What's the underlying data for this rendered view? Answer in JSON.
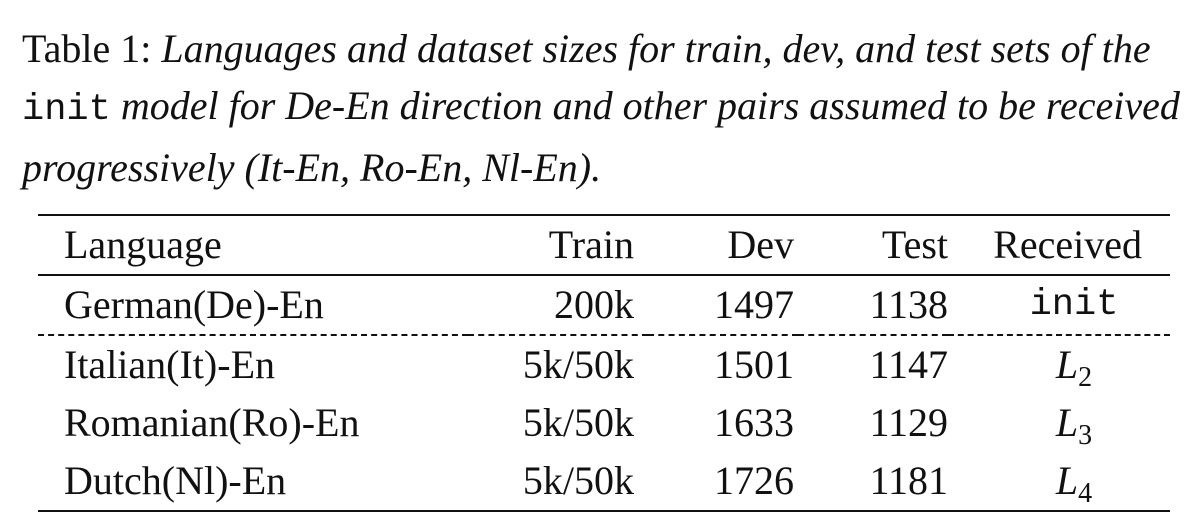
{
  "caption": {
    "label": "Table 1:",
    "text_part1": "Languages and dataset sizes for train, dev, and test sets of the",
    "code_term": "init",
    "text_part2": "model for De-En direction and other pairs assumed to be received progressively (It-En, Ro-En, Nl-En)."
  },
  "table": {
    "headers": {
      "language": "Language",
      "train": "Train",
      "dev": "Dev",
      "test": "Test",
      "received": "Received"
    },
    "rows": [
      {
        "language": "German(De)-En",
        "train": "200k",
        "dev": "1497",
        "test": "1138",
        "received": "init"
      },
      {
        "language": "Italian(It)-En",
        "train": "5k/50k",
        "dev": "1501",
        "test": "1147",
        "received_base": "L",
        "received_sub": "2"
      },
      {
        "language": "Romanian(Ro)-En",
        "train": "5k/50k",
        "dev": "1633",
        "test": "1129",
        "received_base": "L",
        "received_sub": "3"
      },
      {
        "language": "Dutch(Nl)-En",
        "train": "5k/50k",
        "dev": "1726",
        "test": "1181",
        "received_base": "L",
        "received_sub": "4"
      }
    ]
  }
}
